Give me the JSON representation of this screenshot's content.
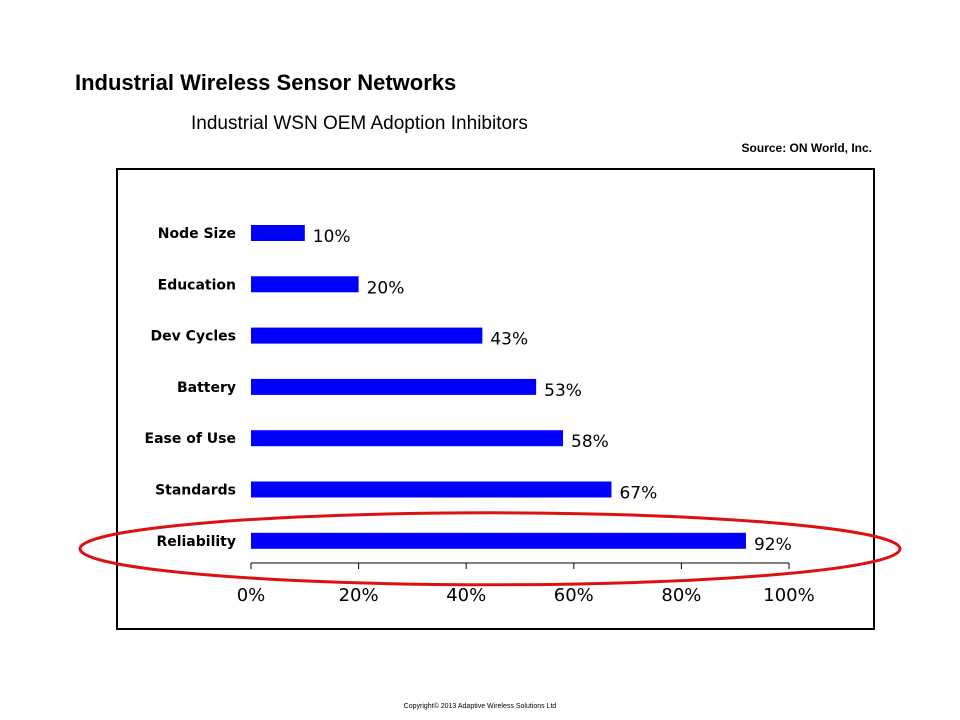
{
  "title": "Industrial Wireless Sensor Networks",
  "subtitle": "Industrial WSN OEM Adoption Inhibitors",
  "source": "Source: ON World, Inc.",
  "footer": "Copyright© 2013 Adaptive Wireless Solutions Ltd",
  "colors": {
    "bar": "#0000ff",
    "highlight": "#dd1111"
  },
  "chart_data": {
    "type": "bar",
    "orientation": "horizontal",
    "categories": [
      "Node Size",
      "Education",
      "Dev Cycles",
      "Battery",
      "Ease of Use",
      "Standards",
      "Reliability"
    ],
    "values": [
      10,
      20,
      43,
      53,
      58,
      67,
      92
    ],
    "value_labels": [
      "10%",
      "20%",
      "43%",
      "53%",
      "58%",
      "67%",
      "92%"
    ],
    "xlim": [
      0,
      100
    ],
    "x_ticks": [
      0,
      20,
      40,
      60,
      80,
      100
    ],
    "x_tick_labels": [
      "0%",
      "20%",
      "40%",
      "60%",
      "80%",
      "100%"
    ],
    "grid": false,
    "highlighted_category": "Reliability"
  }
}
